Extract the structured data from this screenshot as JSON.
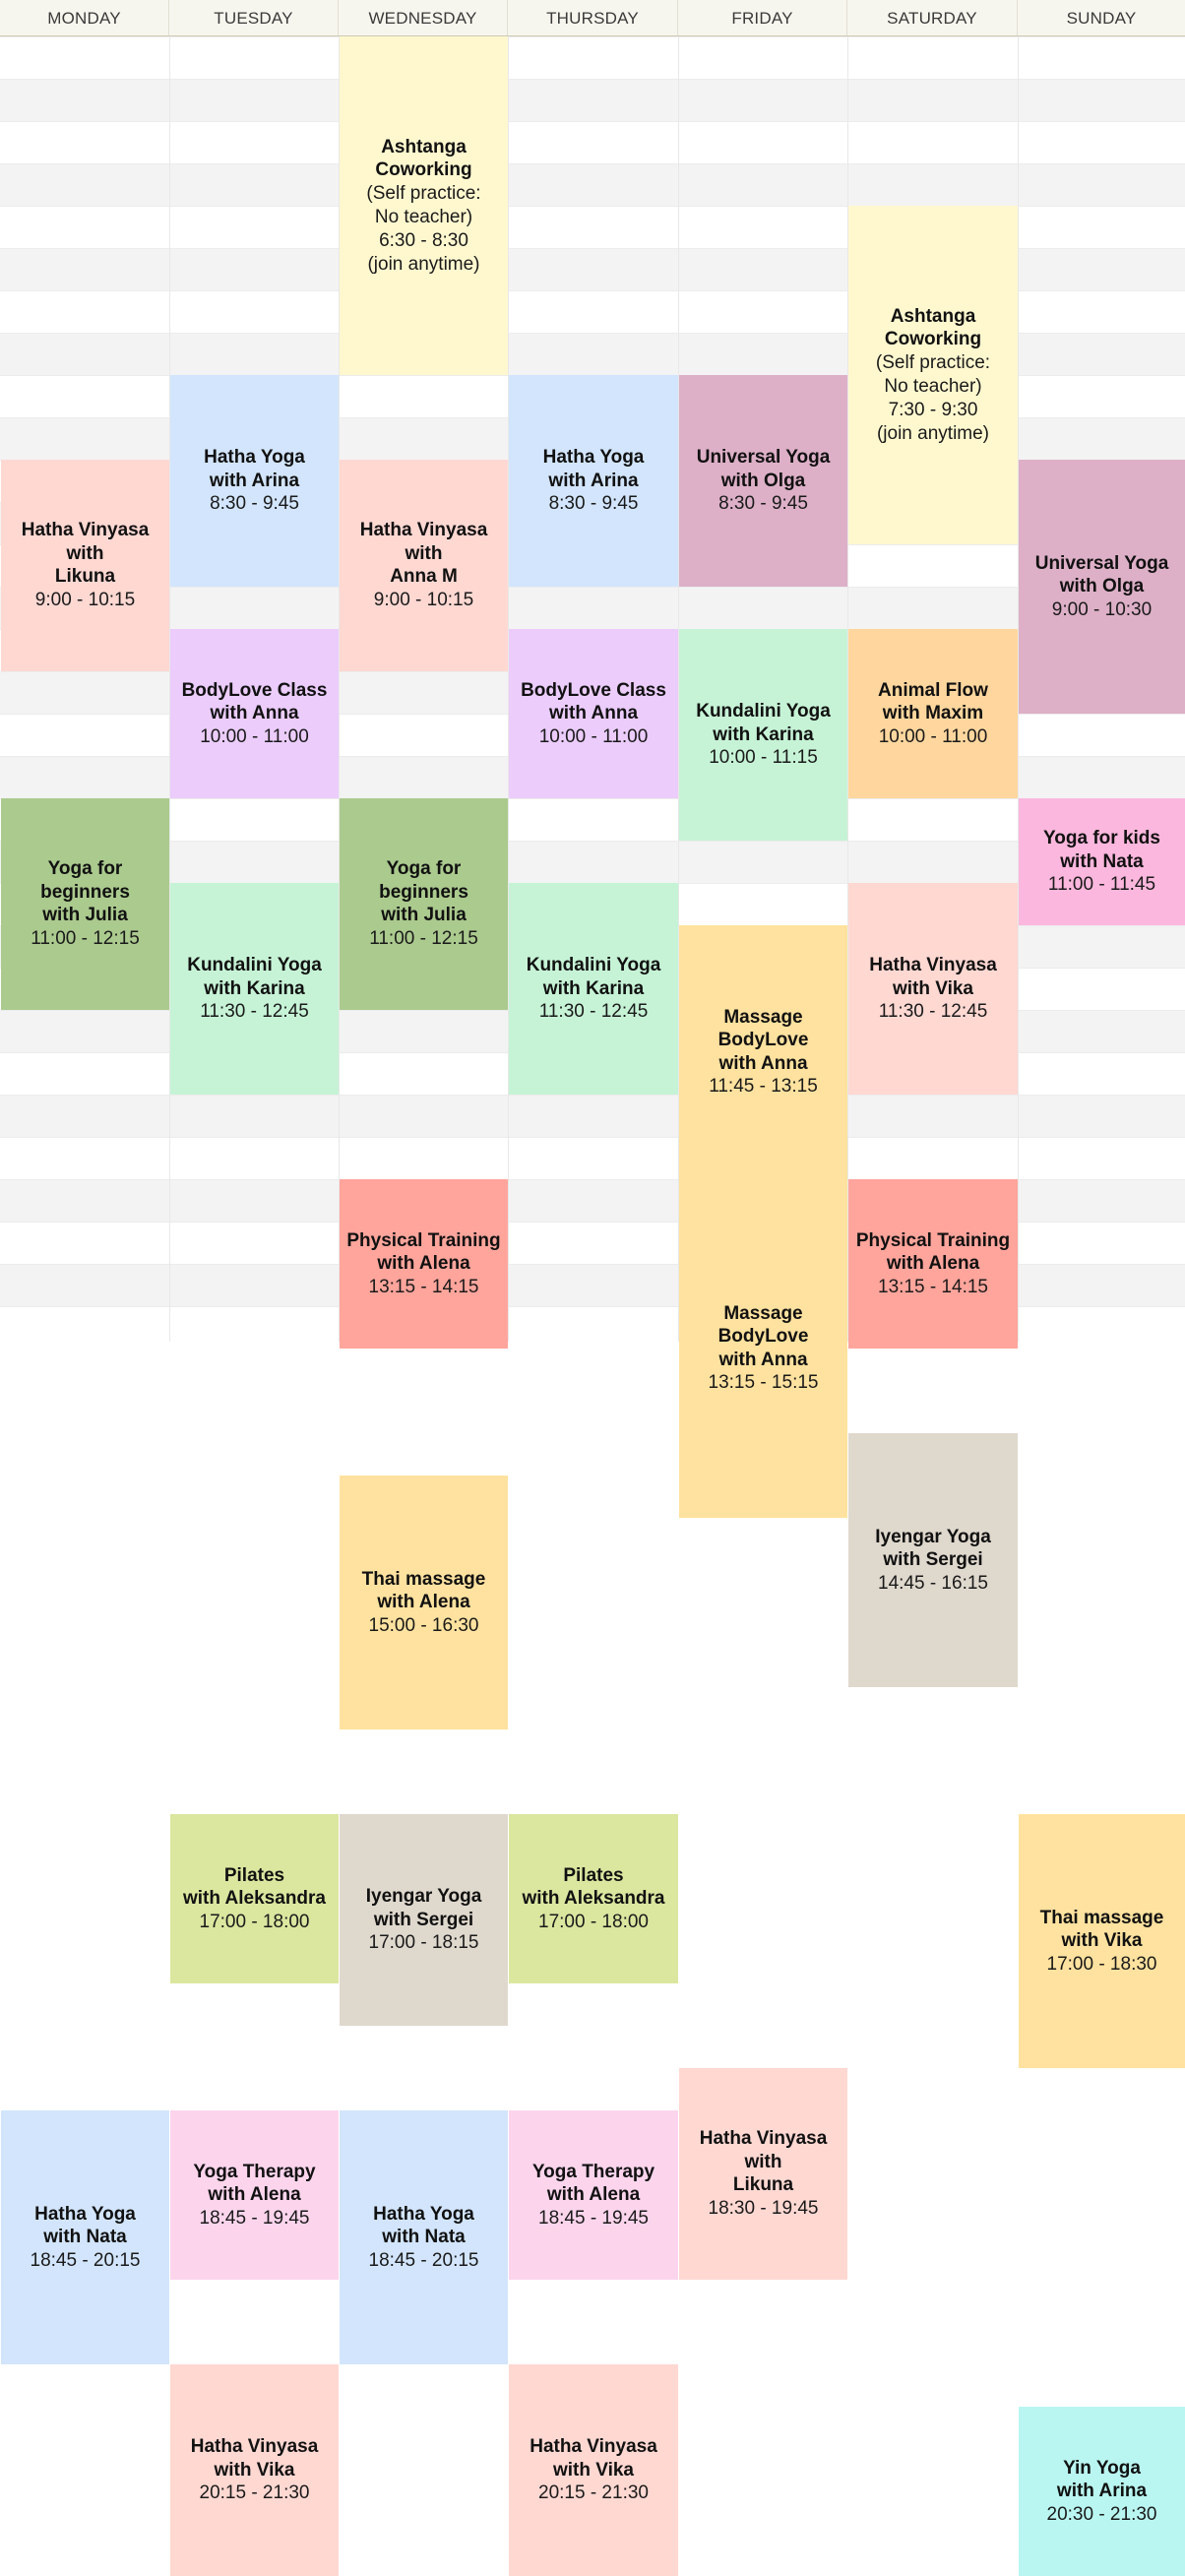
{
  "days": [
    "MONDAY",
    "TUESDAY",
    "WEDNESDAY",
    "THURSDAY",
    "FRIDAY",
    "SATURDAY",
    "SUNDAY"
  ],
  "colors": {
    "header_bg": "#f7f6ee",
    "ashtanga": "#fff8cf",
    "hatha_blue": "#d2e5fc",
    "hatha_vinyasa": "#ffd8d2",
    "universal": "#ddb0c7",
    "bodylove": "#ebccfb",
    "kundalini": "#c6f3d6",
    "beginners": "#abca8e",
    "animal_flow": "#ffd79e",
    "massage": "#ffe29f",
    "kids": "#fbb7dd",
    "physical": "#ffa59c",
    "iyengar": "#dfd8cd",
    "pilates": "#dbe69f",
    "therapy": "#fcd5ed",
    "yin": "#b9f6f1"
  },
  "events": [
    {
      "day": 2,
      "title": "Ashtanga\nCoworking",
      "sub": "(Self practice:\nNo teacher)\n6:30 - 8:30\n(join anytime)",
      "color": "#fff8cf"
    },
    {
      "day": 5,
      "title": "Ashtanga\nCoworking",
      "sub": "(Self practice:\nNo teacher)\n7:30 - 9:30\n(join anytime)",
      "color": "#fff8cf"
    },
    {
      "day": 1,
      "title": "Hatha Yoga\nwith Arina",
      "sub": "8:30 - 9:45",
      "color": "#d2e5fc"
    },
    {
      "day": 3,
      "title": "Hatha Yoga\nwith Arina",
      "sub": "8:30 - 9:45",
      "color": "#d2e5fc"
    },
    {
      "day": 4,
      "title": "Universal Yoga\nwith Olga",
      "sub": "8:30 - 9:45",
      "color": "#ddb0c7"
    },
    {
      "day": 0,
      "title": "Hatha Vinyasa\nwith\nLikuna",
      "sub": "9:00 - 10:15",
      "color": "#ffd8d2"
    },
    {
      "day": 2,
      "title": "Hatha Vinyasa\nwith\nAnna M",
      "sub": "9:00 - 10:15",
      "color": "#ffd8d2"
    },
    {
      "day": 6,
      "title": "Universal Yoga\nwith Olga",
      "sub": "9:00 - 10:30",
      "color": "#ddb0c7"
    },
    {
      "day": 1,
      "title": "BodyLove Class\nwith Anna",
      "sub": "10:00 - 11:00",
      "color": "#ebccfb"
    },
    {
      "day": 3,
      "title": "BodyLove Class\nwith Anna",
      "sub": "10:00 - 11:00",
      "color": "#ebccfb"
    },
    {
      "day": 4,
      "title": "Kundalini Yoga\nwith Karina",
      "sub": "10:00 - 11:15",
      "color": "#c6f3d6"
    },
    {
      "day": 5,
      "title": "Animal Flow\nwith Maxim",
      "sub": "10:00 - 11:00",
      "color": "#ffd79e"
    },
    {
      "day": 0,
      "title": "Yoga for\nbeginners\nwith Julia",
      "sub": "11:00 - 12:15",
      "color": "#abca8e"
    },
    {
      "day": 2,
      "title": "Yoga for\nbeginners\nwith Julia",
      "sub": "11:00 - 12:15",
      "color": "#abca8e"
    },
    {
      "day": 6,
      "title": "Yoga for kids\nwith Nata",
      "sub": "11:00 - 11:45",
      "color": "#fbb7dd"
    },
    {
      "day": 1,
      "title": "Kundalini Yoga\nwith Karina",
      "sub": "11:30 - 12:45",
      "color": "#c6f3d6"
    },
    {
      "day": 3,
      "title": "Kundalini Yoga\nwith Karina",
      "sub": "11:30 - 12:45",
      "color": "#c6f3d6"
    },
    {
      "day": 5,
      "title": "Hatha Vinyasa\nwith Vika",
      "sub": "11:30 - 12:45",
      "color": "#ffd8d2"
    },
    {
      "day": 4,
      "title": "Massage\nBodyLove\nwith Anna",
      "sub": "11:45 - 13:15",
      "color": "#ffe29f"
    },
    {
      "day": 2,
      "title": "Physical Training\nwith Alena",
      "sub": "13:15 - 14:15",
      "color": "#ffa59c"
    },
    {
      "day": 5,
      "title": "Physical Training\nwith Alena",
      "sub": "13:15 - 14:15",
      "color": "#ffa59c"
    },
    {
      "day": 4,
      "title": "Massage\nBodyLove\nwith Anna",
      "sub": "13:15 - 15:15",
      "color": "#ffe29f"
    },
    {
      "day": 5,
      "title": "Iyengar Yoga\nwith Sergei",
      "sub": "14:45 - 16:15",
      "color": "#dfd8cd"
    },
    {
      "day": 2,
      "title": "Thai massage\nwith Alena",
      "sub": "15:00 - 16:30",
      "color": "#ffe29f"
    },
    {
      "day": 1,
      "title": "Pilates\nwith Aleksandra",
      "sub": "17:00 - 18:00",
      "color": "#dbe69f"
    },
    {
      "day": 3,
      "title": "Pilates\nwith Aleksandra",
      "sub": "17:00 - 18:00",
      "color": "#dbe69f"
    },
    {
      "day": 2,
      "title": "Iyengar Yoga\nwith Sergei",
      "sub": "17:00 - 18:15",
      "color": "#dfd8cd"
    },
    {
      "day": 6,
      "title": "Thai massage\nwith Vika",
      "sub": "17:00 - 18:30",
      "color": "#ffe29f"
    },
    {
      "day": 4,
      "title": "Hatha Vinyasa\nwith\nLikuna",
      "sub": "18:30 - 19:45",
      "color": "#ffd8d2"
    },
    {
      "day": 0,
      "title": "Hatha Yoga\nwith Nata",
      "sub": "18:45 - 20:15",
      "color": "#d2e5fc"
    },
    {
      "day": 2,
      "title": "Hatha Yoga\nwith Nata",
      "sub": "18:45 - 20:15",
      "color": "#d2e5fc"
    },
    {
      "day": 1,
      "title": "Yoga Therapy\nwith Alena",
      "sub": "18:45 - 19:45",
      "color": "#fcd5ed"
    },
    {
      "day": 3,
      "title": "Yoga Therapy\nwith Alena",
      "sub": "18:45 - 19:45",
      "color": "#fcd5ed"
    },
    {
      "day": 1,
      "title": "Hatha Vinyasa\nwith Vika",
      "sub": "20:15 - 21:30",
      "color": "#ffd8d2"
    },
    {
      "day": 3,
      "title": "Hatha Vinyasa\nwith Vika",
      "sub": "20:15 - 21:30",
      "color": "#ffd8d2"
    },
    {
      "day": 6,
      "title": "Yin Yoga\nwith Arina",
      "sub": "20:30 - 21:30",
      "color": "#b9f6f1"
    }
  ]
}
